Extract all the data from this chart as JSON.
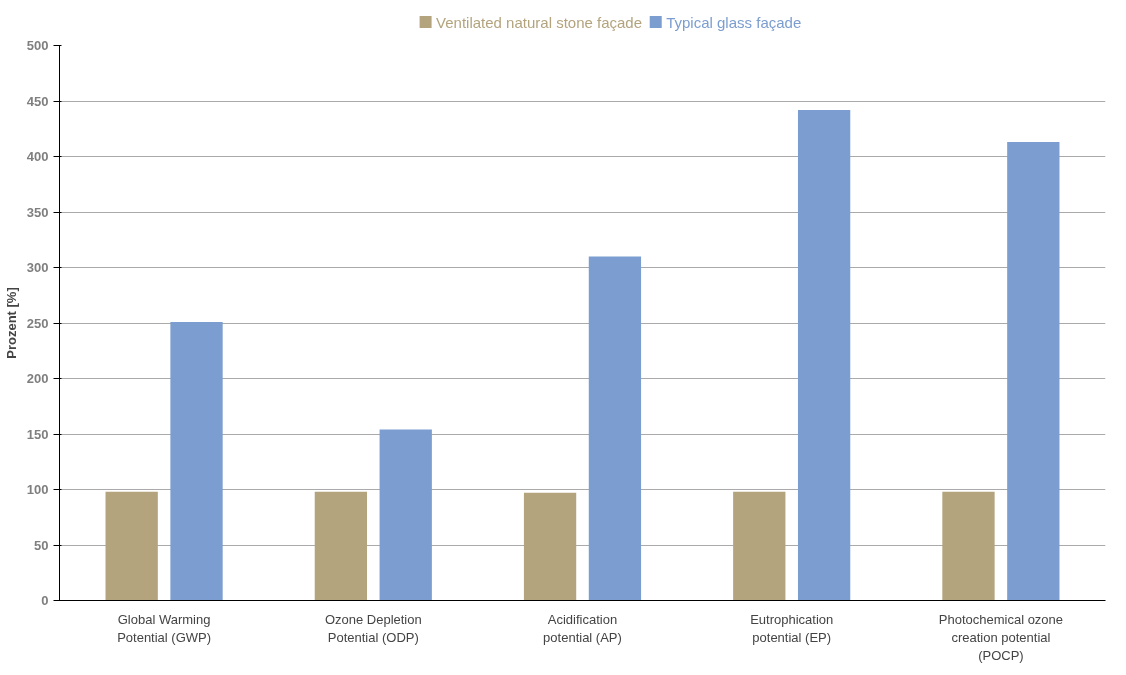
{
  "chart_data": {
    "type": "bar",
    "ylabel": "Prozent [%]",
    "categories": [
      "Global Warming Potential (GWP)",
      "Ozone Depletion Potential (ODP)",
      "Acidification potential (AP)",
      "Eutrophication potential (EP)",
      "Photochemical ozone creation potential (POCP)"
    ],
    "series": [
      {
        "name": "Ventilated natural stone façade",
        "color": "#b3a47e",
        "values": [
          98,
          98,
          97,
          98,
          98
        ]
      },
      {
        "name": "Typical glass façade",
        "color": "#7b9dcf",
        "values": [
          251,
          154,
          310,
          442,
          413
        ]
      }
    ],
    "ylim": [
      0,
      500
    ],
    "yticks": [
      0,
      50,
      100,
      150,
      200,
      250,
      300,
      350,
      400,
      450,
      500
    ],
    "grid": "y",
    "legend": "top"
  }
}
